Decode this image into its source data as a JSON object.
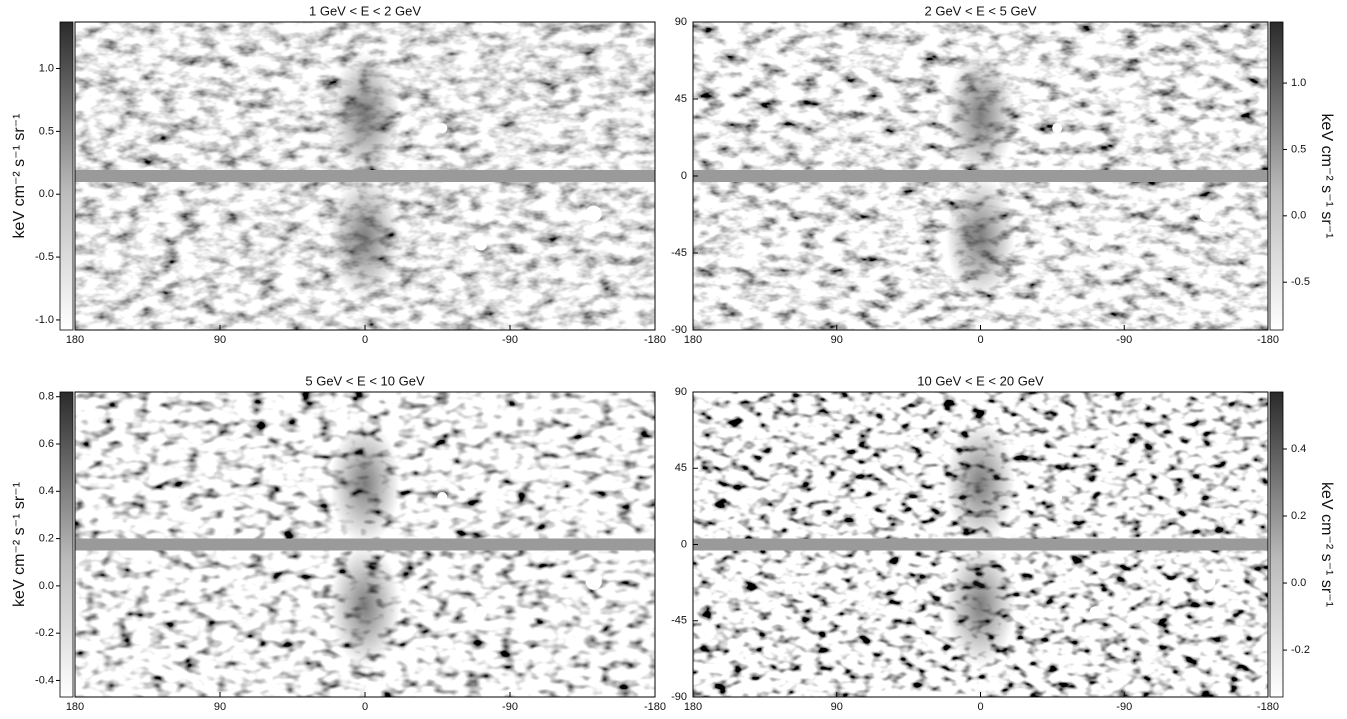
{
  "chart_data": [
    {
      "type": "map",
      "title": "1 GeV < E < 2 GeV",
      "xlim": [
        180,
        -180
      ],
      "xticks": [
        180,
        90,
        0,
        -90,
        -180
      ],
      "ylim": [
        -90,
        90
      ],
      "colorbar": {
        "side": "left",
        "label": "keV cm⁻² s⁻¹ sr⁻¹",
        "lim": [
          -1.08,
          1.37
        ],
        "ticks": [
          {
            "value": -1.0,
            "label": "-1.0"
          },
          -0.5,
          {
            "value": 0,
            "label": "0.0"
          },
          0.5,
          {
            "value": 1.0,
            "label": "1.0"
          }
        ]
      }
    },
    {
      "type": "map",
      "title": "2 GeV < E < 5 GeV",
      "xlim": [
        180,
        -180
      ],
      "xticks": [
        180,
        90,
        0,
        -90,
        -180
      ],
      "ylim": [
        -90,
        90
      ],
      "yticks": [
        -90,
        -45,
        0,
        45,
        90
      ],
      "colorbar": {
        "side": "right",
        "label": "keV cm⁻² s⁻¹ sr⁻¹",
        "lim": [
          -0.86,
          1.46
        ],
        "ticks": [
          -0.5,
          {
            "value": 0,
            "label": "0.0"
          },
          0.5,
          {
            "value": 1.0,
            "label": "1.0"
          }
        ]
      }
    },
    {
      "type": "map",
      "title": "5 GeV < E < 10 GeV",
      "xlim": [
        180,
        -180
      ],
      "xticks": [
        180,
        90,
        0,
        -90,
        -180
      ],
      "ylim": [
        -90,
        90
      ],
      "colorbar": {
        "side": "left",
        "label": "keV cm⁻² s⁻¹ sr⁻¹",
        "lim": [
          -0.47,
          0.82
        ],
        "ticks": [
          -0.4,
          -0.2,
          {
            "value": 0,
            "label": "0.0"
          },
          0.2,
          0.4,
          0.6,
          0.8
        ]
      }
    },
    {
      "type": "map",
      "title": "10 GeV < E < 20 GeV",
      "xlim": [
        180,
        -180
      ],
      "xticks": [
        180,
        90,
        0,
        -90,
        -180
      ],
      "ylim": [
        -90,
        90
      ],
      "yticks": [
        -90,
        -45,
        0,
        45,
        90
      ],
      "colorbar": {
        "side": "right",
        "label": "keV cm⁻² s⁻¹ sr⁻¹",
        "lim": [
          -0.34,
          0.57
        ],
        "ticks": [
          -0.2,
          {
            "value": 0,
            "label": "0.0"
          },
          0.2,
          0.4
        ]
      }
    }
  ]
}
